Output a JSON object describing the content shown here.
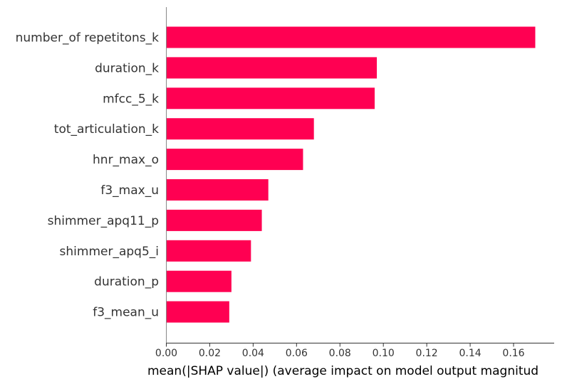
{
  "chart_data": {
    "type": "bar",
    "orientation": "horizontal",
    "title": "",
    "xlabel": "mean(|SHAP value|) (average impact on model output magnitud",
    "ylabel": "",
    "xlim": [
      0,
      0.18
    ],
    "xticks": [
      "0.00",
      "0.02",
      "0.04",
      "0.06",
      "0.08",
      "0.10",
      "0.12",
      "0.14",
      "0.16"
    ],
    "grid": false,
    "legend": "none",
    "bar_color": "#ff0052",
    "categories": [
      "number_of repetitons_k",
      "duration_k",
      "mfcc_5_k",
      "tot_articulation_k",
      "hnr_max_o",
      "f3_max_u",
      "shimmer_apq11_p",
      "shimmer_apq5_i",
      "duration_p",
      "f3_mean_u"
    ],
    "values": [
      0.17,
      0.097,
      0.096,
      0.068,
      0.063,
      0.047,
      0.044,
      0.039,
      0.03,
      0.029
    ]
  }
}
